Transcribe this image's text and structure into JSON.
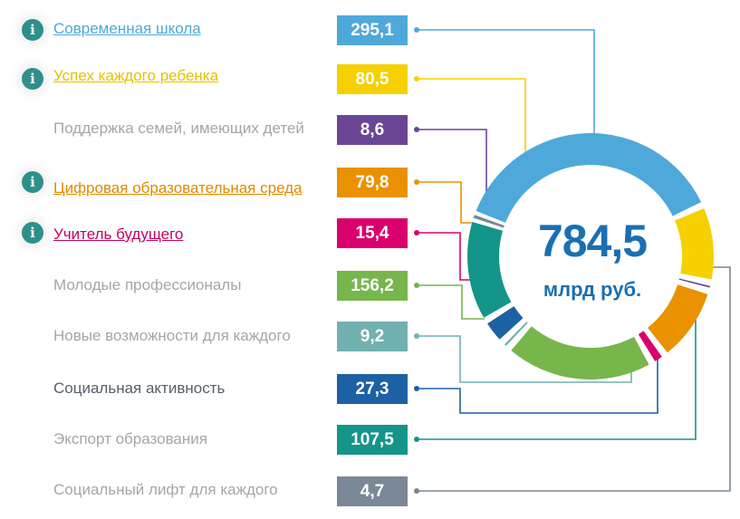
{
  "chart_data": {
    "type": "pie",
    "total": "784,5",
    "unit": "млрд руб.",
    "series": [
      {
        "name": "Современная школа",
        "value": 295.1,
        "value_label": "295,1",
        "color": "#4fa8da",
        "link": true,
        "info": true,
        "label_color": "#4fa8da"
      },
      {
        "name": "Успех каждого ребенка",
        "value": 80.5,
        "value_label": "80,5",
        "color": "#f6d000",
        "link": true,
        "info": true,
        "label_color": "#e6c000"
      },
      {
        "name": "Поддержка семей, имеющих детей",
        "value": 8.6,
        "value_label": "8,6",
        "color": "#6a4595",
        "link": false,
        "info": false,
        "label_color": "#a3a6ab"
      },
      {
        "name": "Цифровая образовательная среда",
        "value": 79.8,
        "value_label": "79,8",
        "color": "#ea9100",
        "link": true,
        "info": true,
        "label_color": "#e08a00"
      },
      {
        "name": "Учитель будущего",
        "value": 15.4,
        "value_label": "15,4",
        "color": "#d9006e",
        "link": true,
        "info": true,
        "label_color": "#c8005f"
      },
      {
        "name": "Молодые профессионалы",
        "value": 156.2,
        "value_label": "156,2",
        "color": "#76b64b",
        "link": false,
        "info": false,
        "label_color": "#a3a6ab"
      },
      {
        "name": "Новые возможности для каждого",
        "value": 9.2,
        "value_label": "9,2",
        "color": "#71b1b0",
        "link": false,
        "info": false,
        "label_color": "#a3a6ab"
      },
      {
        "name": "Социальная активность",
        "value": 27.3,
        "value_label": "27,3",
        "color": "#1c61a4",
        "link": false,
        "info": false,
        "label_color": "#55606c"
      },
      {
        "name": "Экспорт образования",
        "value": 107.5,
        "value_label": "107,5",
        "color": "#14958a",
        "link": false,
        "info": false,
        "label_color": "#a3a6ab"
      },
      {
        "name": "Социальный лифт для каждого",
        "value": 4.7,
        "value_label": "4,7",
        "color": "#7a8796",
        "link": false,
        "info": false,
        "label_color": "#a3a6ab"
      }
    ]
  }
}
